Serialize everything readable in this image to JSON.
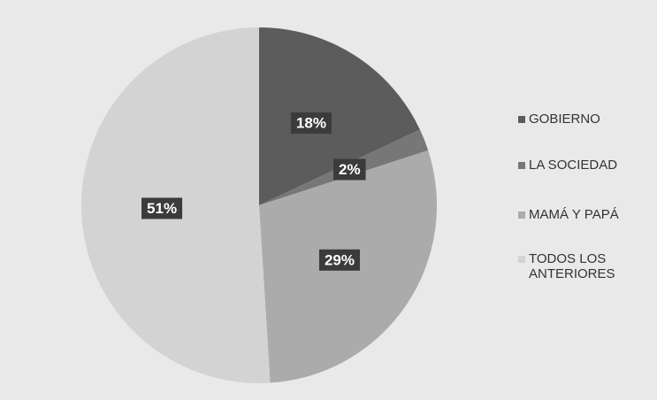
{
  "chart_data": {
    "type": "pie",
    "categories": [
      "GOBIERNO",
      "LA SOCIEDAD",
      "MAMÁ Y PAPÁ",
      "TODOS LOS ANTERIORES"
    ],
    "values": [
      18,
      2,
      29,
      51
    ],
    "value_labels": [
      "18%",
      "2%",
      "29%",
      "51%"
    ],
    "colors": [
      "#5c5c5c",
      "#777777",
      "#ababab",
      "#d3d3d3"
    ]
  }
}
